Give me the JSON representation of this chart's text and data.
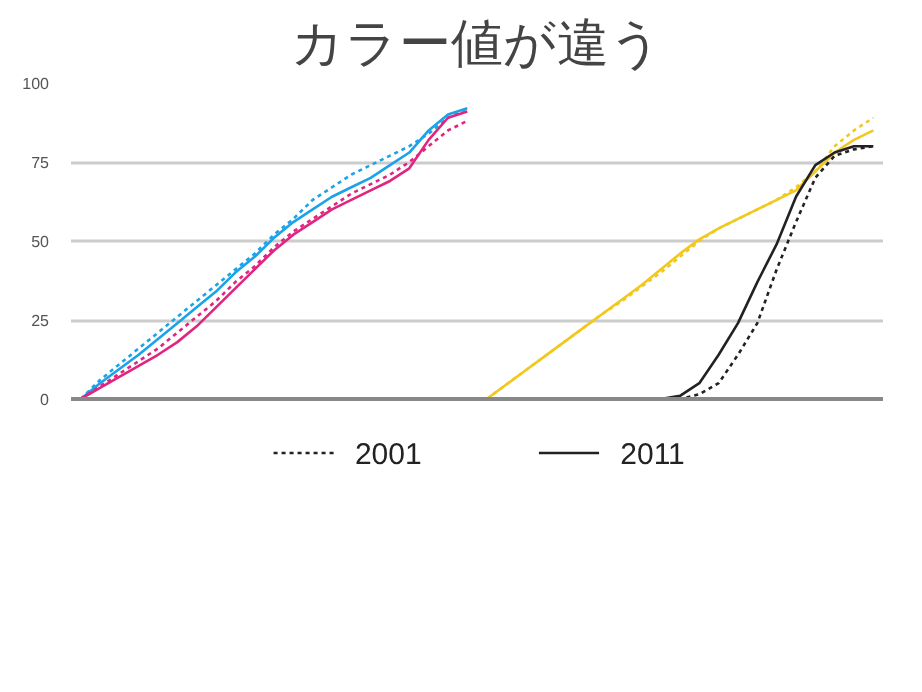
{
  "chart_data": {
    "type": "line",
    "title": "カラー値が違う",
    "categories": [
      null,
      null,
      null,
      null,
      null,
      null,
      null,
      null,
      null,
      null,
      null,
      null,
      null,
      null,
      null,
      null,
      null,
      null,
      null,
      null,
      null,
      null,
      null,
      null,
      null,
      null,
      null,
      null,
      null,
      null,
      null,
      null,
      null,
      null,
      null,
      null,
      null,
      null,
      null,
      null,
      null,
      null
    ],
    "ylim": [
      0,
      100
    ],
    "yticks": [
      0,
      25,
      50,
      75,
      100
    ],
    "grid": "y",
    "tick_labels": "y",
    "legend": "bottom",
    "marker": "none",
    "series": [
      {
        "color": "#1aa3e8",
        "line_style": "solid",
        "values": [
          0,
          5,
          9.5,
          14,
          19,
          24,
          29,
          34,
          40,
          45,
          51,
          56,
          60,
          64,
          67,
          70,
          74,
          78,
          85,
          90,
          92,
          null,
          null,
          null,
          null,
          null,
          null,
          null,
          null,
          null,
          null,
          null,
          null,
          null,
          null,
          null,
          null,
          null,
          null,
          null,
          null,
          null
        ]
      },
      {
        "color": "#1aa3e8",
        "line_style": "dotted",
        "values": [
          0,
          6,
          11,
          16,
          21,
          26,
          31,
          36,
          41,
          46,
          52,
          57,
          63,
          67,
          71,
          74,
          77,
          80,
          84,
          89,
          92,
          null,
          null,
          null,
          null,
          null,
          null,
          null,
          null,
          null,
          null,
          null,
          null,
          null,
          null,
          null,
          null,
          null,
          null,
          null,
          null,
          null
        ]
      },
      {
        "color": "#e0257f",
        "line_style": "solid",
        "values": [
          0,
          3.5,
          7,
          10.5,
          14,
          18,
          23,
          29,
          35,
          41,
          47,
          52,
          56,
          60,
          63,
          66,
          69,
          73,
          82,
          89,
          91,
          null,
          null,
          null,
          null,
          null,
          null,
          null,
          null,
          null,
          null,
          null,
          null,
          null,
          null,
          null,
          null,
          null,
          null,
          null,
          null,
          null
        ]
      },
      {
        "color": "#e0257f",
        "line_style": "dotted",
        "values": [
          0,
          4,
          8,
          12,
          16,
          21,
          26,
          31,
          37,
          42,
          48,
          53,
          57,
          61,
          65,
          68,
          71,
          75,
          80,
          85,
          88,
          null,
          null,
          null,
          null,
          null,
          null,
          null,
          null,
          null,
          null,
          null,
          null,
          null,
          null,
          null,
          null,
          null,
          null,
          null,
          null,
          null
        ]
      },
      {
        "color": "#f2c81e",
        "line_style": "solid",
        "values": [
          null,
          null,
          null,
          null,
          null,
          null,
          null,
          null,
          null,
          null,
          null,
          null,
          null,
          null,
          null,
          null,
          null,
          null,
          null,
          null,
          null,
          0,
          4.5,
          9,
          13.5,
          18,
          22.5,
          27,
          31.5,
          36,
          41,
          46,
          50.5,
          54,
          57,
          60,
          63,
          66,
          72,
          78,
          82,
          85
        ]
      },
      {
        "color": "#f2c81e",
        "line_style": "dotted",
        "values": [
          null,
          null,
          null,
          null,
          null,
          null,
          null,
          null,
          null,
          null,
          null,
          null,
          null,
          null,
          null,
          null,
          null,
          null,
          null,
          null,
          null,
          0,
          4.5,
          9,
          13.5,
          18,
          22.5,
          27,
          31,
          35.5,
          40,
          45,
          50,
          54,
          57,
          60,
          63,
          67,
          72,
          80,
          85,
          89
        ]
      },
      {
        "name": "2001",
        "color": "#222222",
        "line_style": "dotted",
        "values": [
          null,
          null,
          null,
          null,
          null,
          null,
          null,
          null,
          null,
          null,
          null,
          null,
          null,
          null,
          null,
          null,
          null,
          null,
          null,
          null,
          null,
          0,
          0,
          0,
          0,
          0,
          0,
          0,
          0,
          0,
          0,
          0,
          1.5,
          5,
          14,
          24,
          41,
          56,
          70,
          77,
          79,
          80
        ]
      },
      {
        "name": "2011",
        "color": "#222222",
        "line_style": "solid",
        "values": [
          null,
          null,
          null,
          null,
          null,
          null,
          null,
          null,
          null,
          null,
          null,
          null,
          null,
          null,
          null,
          null,
          null,
          null,
          null,
          null,
          null,
          0,
          0,
          0,
          0,
          0,
          0,
          0,
          0,
          0,
          0,
          1,
          5,
          14,
          24,
          37,
          49,
          64,
          74,
          78,
          80,
          80
        ]
      }
    ]
  }
}
